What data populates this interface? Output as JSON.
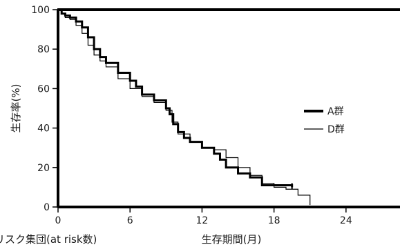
{
  "chart_data": {
    "type": "line",
    "subtype": "kaplan-meier step",
    "ylabel": "生存率(%)",
    "xlabel": "生存期間(月)",
    "risk_label": "リスク集団(at risk数)",
    "xlim": [
      0,
      28.5
    ],
    "ylim": [
      0,
      100
    ],
    "xticks": [
      0,
      6,
      12,
      18,
      24
    ],
    "yticks": [
      0,
      20,
      40,
      60,
      80,
      100
    ],
    "grid": false,
    "legend_position": "right-middle",
    "series": [
      {
        "name": "A群",
        "line_style": "thick-solid",
        "color": "#000000",
        "x": [
          0,
          0.3,
          0.6,
          1,
          1.5,
          2,
          2.5,
          3,
          3.5,
          4,
          5,
          6,
          6.5,
          7,
          8,
          9,
          9.3,
          9.6,
          10,
          10.5,
          11,
          12,
          13,
          13.5,
          14,
          15,
          16,
          17,
          19.5
        ],
        "y": [
          100,
          98,
          97,
          96,
          94,
          91,
          86,
          80,
          76,
          73,
          68,
          64,
          61,
          57,
          54,
          50,
          47,
          42,
          38,
          35,
          33,
          30,
          27,
          24,
          20,
          17,
          15,
          11,
          10
        ]
      },
      {
        "name": "D群",
        "line_style": "thin-solid",
        "color": "#000000",
        "x": [
          0,
          0.3,
          0.6,
          1,
          1.5,
          2,
          2.5,
          3,
          3.5,
          4,
          5,
          6,
          7,
          8,
          9,
          9.5,
          10,
          11,
          12,
          13,
          14,
          15,
          16,
          17,
          18,
          19,
          20,
          21
        ],
        "y": [
          100,
          98,
          96,
          95,
          92,
          88,
          82,
          77,
          74,
          71,
          65,
          60,
          56,
          53,
          49,
          43,
          37,
          33,
          30,
          29,
          25,
          20,
          16,
          12,
          10,
          9,
          6,
          1
        ]
      }
    ],
    "censor_marks": {
      "A群": [
        19.5
      ]
    },
    "annotations": []
  }
}
